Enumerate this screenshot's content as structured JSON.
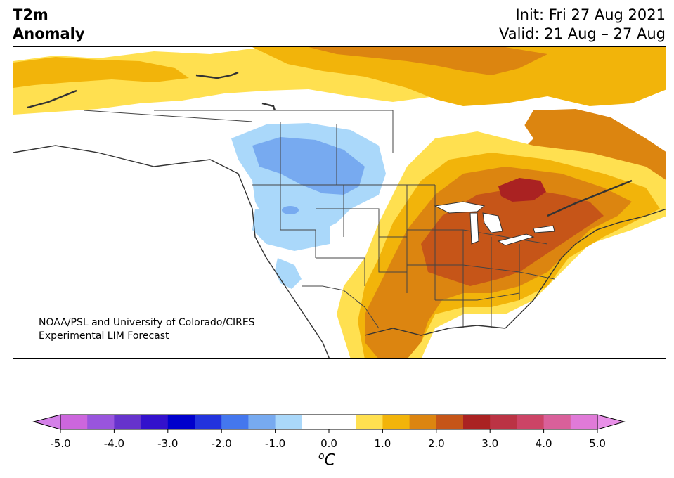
{
  "title": {
    "line1": "T2m",
    "line2": "Anomaly"
  },
  "init": "Init: Fri 27 Aug 2021",
  "valid": "Valid: 21 Aug – 27 Aug",
  "credit": {
    "line1": "NOAA/PSL and University of Colorado/CIRES",
    "line2": "Experimental LIM Forecast"
  },
  "colorbar": {
    "unit_main": "C",
    "unit_sup": "o",
    "ticks": [
      "-5.0",
      "-4.0",
      "-3.0",
      "-2.0",
      "-1.0",
      "0.0",
      "1.0",
      "2.0",
      "3.0",
      "4.0",
      "5.0"
    ],
    "colors": [
      "#cc66dd",
      "#9955dd",
      "#6633cc",
      "#3311cc",
      "#0000cc",
      "#2233dd",
      "#4477ee",
      "#77aaf0",
      "#aad8fa",
      "#ffffff",
      "#ffffff",
      "#ffe050",
      "#f2b40a",
      "#dc8510",
      "#c65518",
      "#aa2222",
      "#bb3344",
      "#cc4466",
      "#d9609a",
      "#e07ad8"
    ],
    "under_color": "#d480e8",
    "over_color": "#e890e8"
  }
}
